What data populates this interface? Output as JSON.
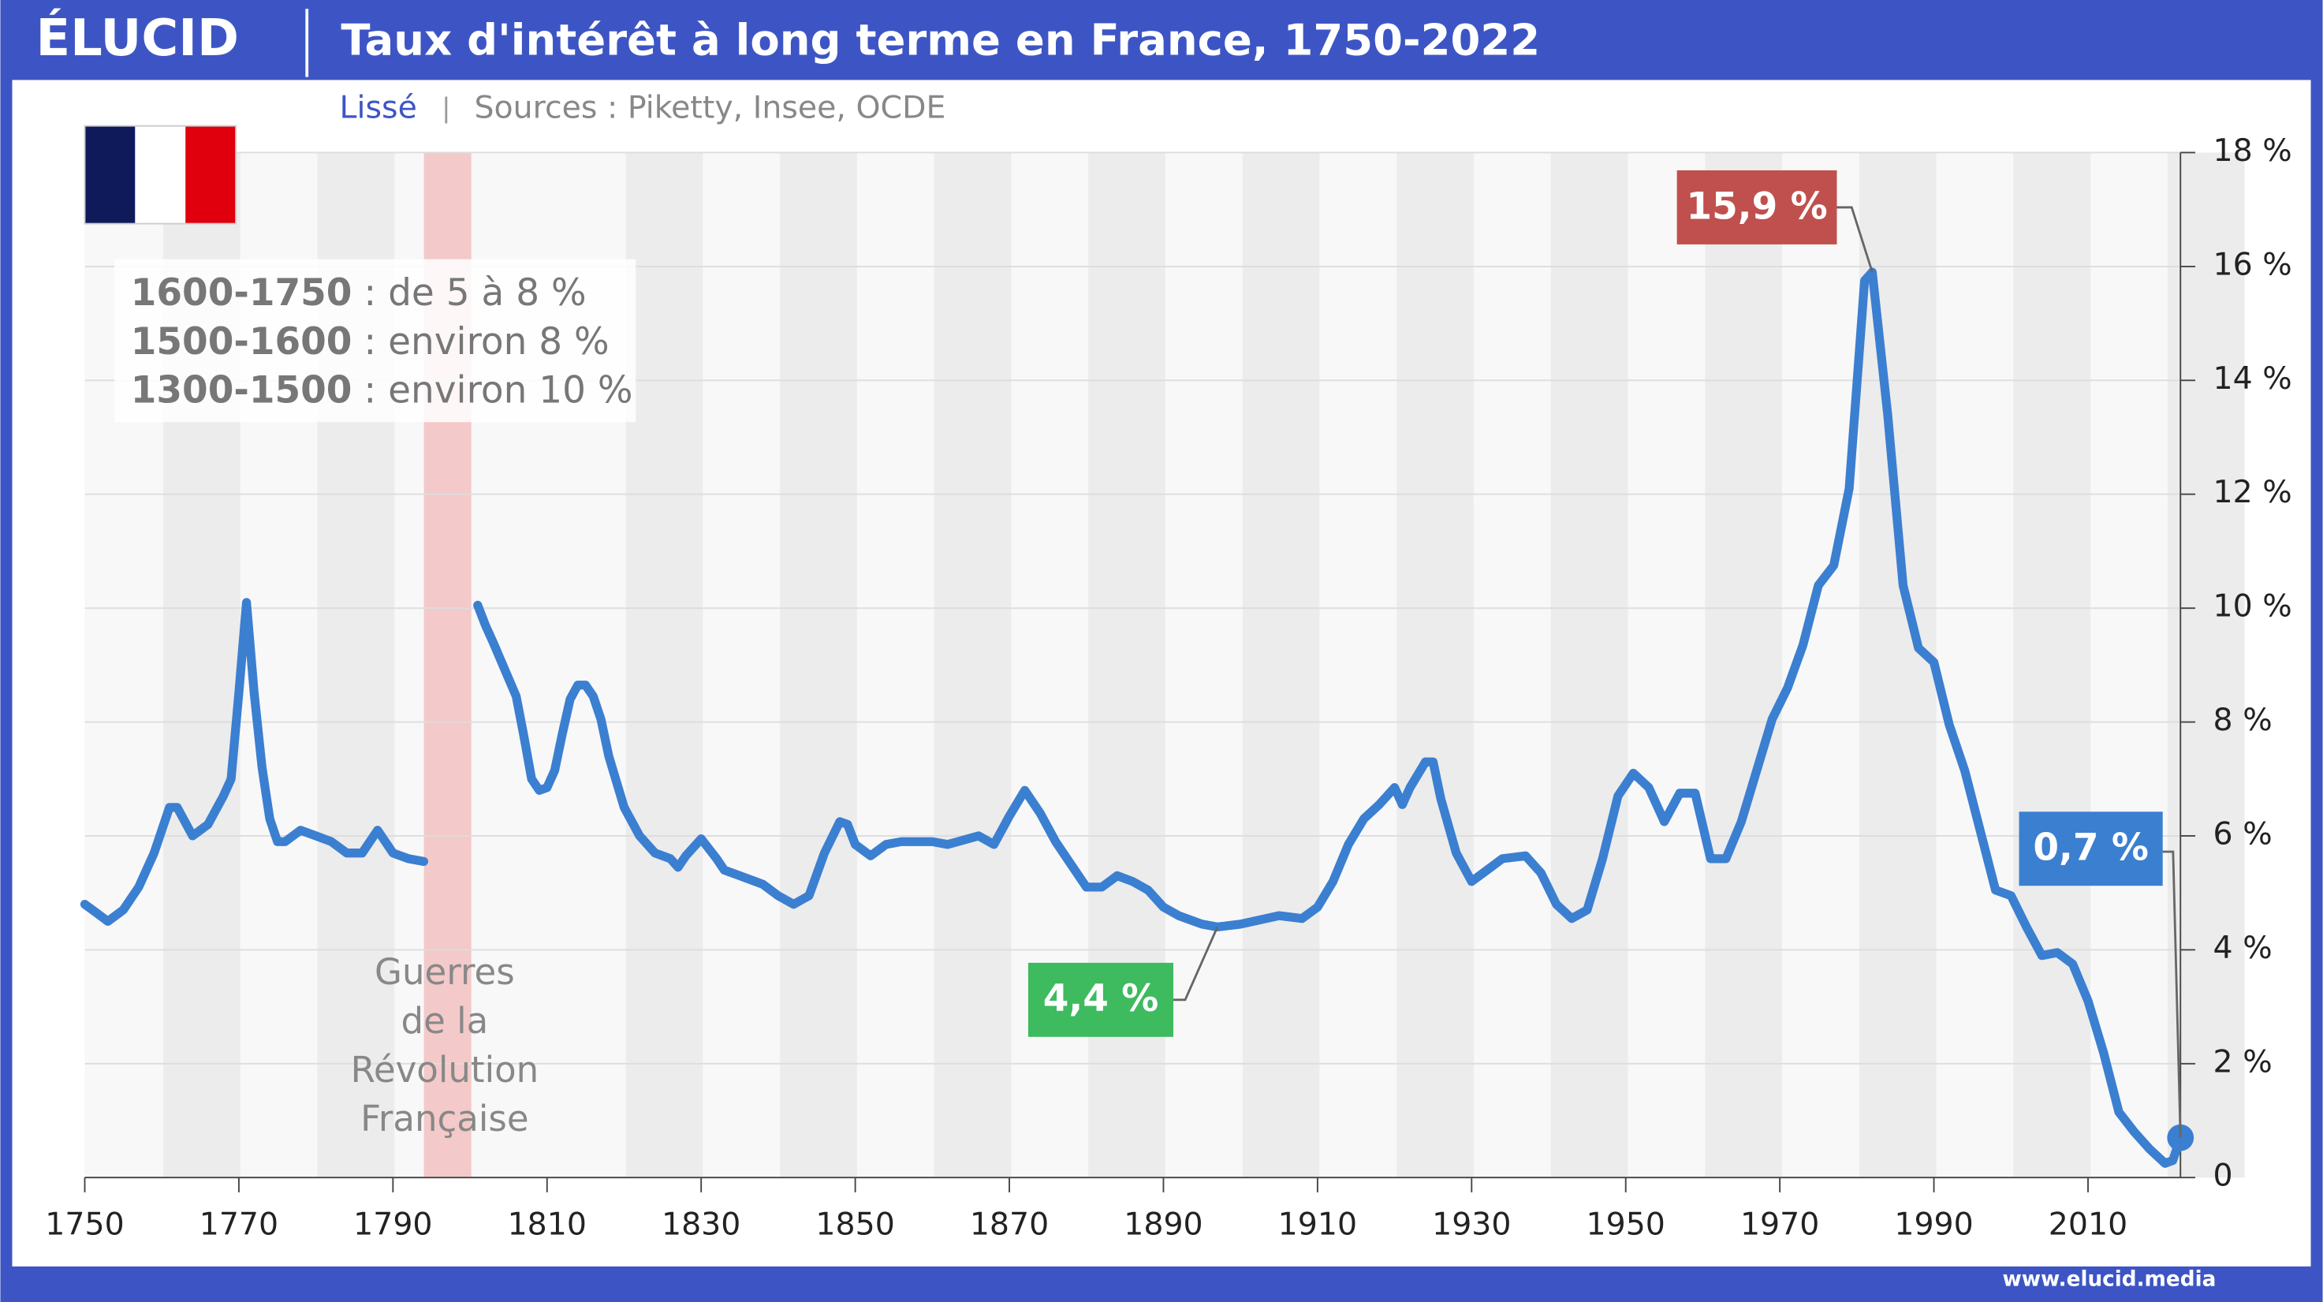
{
  "header": {
    "logo": "ÉLUCID",
    "title": "Taux d'intérêt à long terme en France, 1750-2022"
  },
  "chart_data": {
    "type": "line",
    "subtitle": "Lissé",
    "source": "Sources : Piketty, Insee, OCDE",
    "x": [
      1750,
      1751,
      1753,
      1755,
      1757,
      1759,
      1761,
      1762,
      1764,
      1766,
      1768,
      1769,
      1770,
      1771,
      1772,
      1773,
      1774,
      1775,
      1776,
      1778,
      1780,
      1782,
      1784,
      1786,
      1788,
      1790,
      1792,
      1794,
      1797,
      1801,
      1802,
      1803,
      1806,
      1807,
      1808,
      1809,
      1810,
      1811,
      1812,
      1813,
      1814,
      1815,
      1816,
      1817,
      1818,
      1820,
      1822,
      1824,
      1826,
      1827,
      1828,
      1830,
      1832,
      1833,
      1835,
      1838,
      1840,
      1842,
      1844,
      1846,
      1848,
      1849,
      1850,
      1852,
      1854,
      1856,
      1860,
      1862,
      1866,
      1868,
      1870,
      1872,
      1874,
      1876,
      1878,
      1880,
      1882,
      1884,
      1886,
      1888,
      1890,
      1892,
      1895,
      1897,
      1900,
      1905,
      1908,
      1910,
      1912,
      1914,
      1916,
      1918,
      1920,
      1921,
      1922,
      1924,
      1925,
      1926,
      1928,
      1930,
      1932,
      1934,
      1937,
      1939,
      1941,
      1943,
      1945,
      1947,
      1949,
      1951,
      1953,
      1955,
      1957,
      1959,
      1961,
      1963,
      1965,
      1967,
      1969,
      1971,
      1973,
      1975,
      1977,
      1979,
      1981,
      1982,
      1984,
      1986,
      1988,
      1990,
      1992,
      1994,
      1996,
      1998,
      2000,
      2002,
      2004,
      2006,
      2008,
      2010,
      2012,
      2014,
      2016,
      2018,
      2020,
      2021,
      2022
    ],
    "values": [
      4.8,
      4.7,
      4.5,
      4.7,
      5.1,
      5.7,
      6.5,
      6.5,
      6.0,
      6.2,
      6.7,
      7.0,
      8.5,
      10.1,
      8.5,
      7.2,
      6.3,
      5.9,
      5.9,
      6.1,
      6.0,
      5.9,
      5.7,
      5.7,
      6.1,
      5.7,
      5.6,
      5.55,
      null,
      10.05,
      9.7,
      9.4,
      8.45,
      7.75,
      7.0,
      6.8,
      6.85,
      7.15,
      7.8,
      8.4,
      8.65,
      8.65,
      8.45,
      8.05,
      7.4,
      6.5,
      6.0,
      5.7,
      5.6,
      5.45,
      5.65,
      5.95,
      5.6,
      5.4,
      5.3,
      5.15,
      4.95,
      4.8,
      4.95,
      5.7,
      6.25,
      6.2,
      5.85,
      5.65,
      5.85,
      5.9,
      5.9,
      5.85,
      6.0,
      5.85,
      6.35,
      6.8,
      6.4,
      5.9,
      5.5,
      5.1,
      5.1,
      5.3,
      5.2,
      5.05,
      4.75,
      4.6,
      4.45,
      4.4,
      4.45,
      4.6,
      4.55,
      4.75,
      5.2,
      5.85,
      6.3,
      6.55,
      6.85,
      6.55,
      6.85,
      7.3,
      7.3,
      6.65,
      5.7,
      5.2,
      5.4,
      5.6,
      5.65,
      5.35,
      4.8,
      4.55,
      4.7,
      5.6,
      6.7,
      7.1,
      6.85,
      6.25,
      6.75,
      6.75,
      5.6,
      5.6,
      6.25,
      7.15,
      8.05,
      8.6,
      9.35,
      10.4,
      10.75,
      12.1,
      15.75,
      15.9,
      13.4,
      10.4,
      9.3,
      9.05,
      7.95,
      7.15,
      6.1,
      5.05,
      4.95,
      4.4,
      3.9,
      3.95,
      3.75,
      3.1,
      2.2,
      1.15,
      0.8,
      0.5,
      0.25,
      0.3,
      0.7
    ],
    "color": "#3b7fd1",
    "xlim": [
      1750,
      2022
    ],
    "ylim": [
      0,
      18
    ],
    "xticks": [
      1750,
      1770,
      1790,
      1810,
      1830,
      1850,
      1870,
      1890,
      1910,
      1930,
      1950,
      1970,
      1990,
      2010
    ],
    "yticks": [
      0,
      {
        "value": 2,
        "label": "2 %"
      },
      {
        "value": 4,
        "label": "4 %"
      },
      {
        "value": 6,
        "label": "6 %"
      },
      {
        "value": 8,
        "label": "8 %"
      },
      {
        "value": 10,
        "label": "10 %"
      },
      {
        "value": 12,
        "label": "12 %"
      },
      {
        "value": 14,
        "label": "14 %"
      },
      {
        "value": 16,
        "label": "16 %"
      },
      {
        "value": 18,
        "label": "18 %"
      }
    ],
    "grid": true,
    "annotations": [
      {
        "label": "15,9 %",
        "value": 15.9,
        "x": 1982,
        "color": "#c0504d"
      },
      {
        "label": "4,4 %",
        "value": 4.4,
        "x": 1897,
        "color": "#3dbb5e"
      },
      {
        "label": "0,7 %",
        "value": 0.7,
        "x": 2022,
        "color": "#3b7fd1"
      }
    ],
    "notes": [
      {
        "bold": "1600-1750",
        "text": " : de 5 à 8 %"
      },
      {
        "bold": "1500-1600",
        "text": " : environ 8 %"
      },
      {
        "bold": "1300-1500",
        "text": " : environ 10 %"
      }
    ],
    "period_label": [
      "Guerres",
      "de la",
      "Révolution",
      "Française"
    ]
  },
  "footer": "www.elucid.media"
}
